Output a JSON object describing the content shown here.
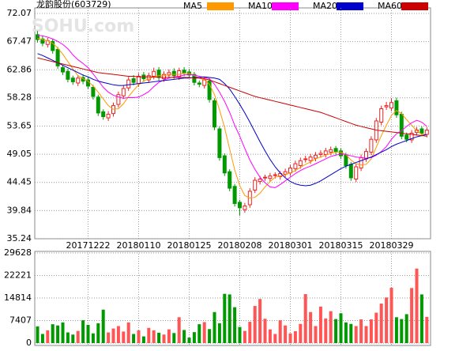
{
  "chart_data": [
    {
      "type": "candlestick",
      "title": "龙韵股份(603729)",
      "watermark": "SOHU.com",
      "categories": [
        null,
        null,
        null,
        null,
        null,
        null,
        null,
        null,
        null,
        null,
        "20171222",
        null,
        null,
        null,
        null,
        null,
        null,
        null,
        null,
        null,
        "20180110",
        null,
        null,
        null,
        null,
        null,
        null,
        null,
        null,
        null,
        "20180125",
        null,
        null,
        null,
        null,
        null,
        null,
        null,
        null,
        null,
        "20180208",
        null,
        null,
        null,
        null,
        null,
        null,
        null,
        null,
        null,
        "20180301",
        null,
        null,
        null,
        null,
        null,
        null,
        null,
        null,
        null,
        "20180315",
        null,
        null,
        null,
        null,
        null,
        null,
        null,
        null,
        null,
        "20180329",
        null,
        null,
        null,
        null,
        null,
        null,
        null
      ],
      "open": [
        68.6,
        67.9,
        67.0,
        67.5,
        66.2,
        63.2,
        62.6,
        61.5,
        60.7,
        61.6,
        61.2,
        60.0,
        58.4,
        56.0,
        55.0,
        55.7,
        57.2,
        58.6,
        59.9,
        61.4,
        60.6,
        62.0,
        61.2,
        61.8,
        62.8,
        61.4,
        62.0,
        62.6,
        61.7,
        62.8,
        62.5,
        62.1,
        60.7,
        60.3,
        61.0,
        57.8,
        53.2,
        48.8,
        46.2,
        43.8,
        41.2,
        40.0,
        40.8,
        43.2,
        44.6,
        45.2,
        45.1,
        45.6,
        45.4,
        45.8,
        46.0,
        46.7,
        47.2,
        48.2,
        48.0,
        48.4,
        49.0,
        49.0,
        49.4,
        50.0,
        49.6,
        48.9,
        47.4,
        45.0,
        46.8,
        48.3,
        49.4,
        51.4,
        54.3,
        56.8,
        56.6,
        57.8,
        55.6,
        52.2,
        51.4,
        52.6,
        53.2,
        52.3
      ],
      "high": [
        69.2,
        68.4,
        68.1,
        67.9,
        66.6,
        63.6,
        63.0,
        61.9,
        62.0,
        62.1,
        61.6,
        60.4,
        58.8,
        56.4,
        56.1,
        57.5,
        59.3,
        60.3,
        61.7,
        62.0,
        62.3,
        62.5,
        62.4,
        63.2,
        63.3,
        62.6,
        62.9,
        63.1,
        63.2,
        63.3,
        63.0,
        62.5,
        61.1,
        61.7,
        61.5,
        58.2,
        53.6,
        49.2,
        46.6,
        44.2,
        41.6,
        41.1,
        43.5,
        45.3,
        45.5,
        45.7,
        46.0,
        46.1,
        46.3,
        46.7,
        47.3,
        48.0,
        48.5,
        48.8,
        49.1,
        49.4,
        49.7,
        50.1,
        50.3,
        50.4,
        50.0,
        49.3,
        47.8,
        47.5,
        49.0,
        50.0,
        52.0,
        55.0,
        57.0,
        57.6,
        58.2,
        58.3,
        56.0,
        52.6,
        53.0,
        53.5,
        53.6,
        53.5
      ],
      "low": [
        67.3,
        66.7,
        66.5,
        65.5,
        63.0,
        62.0,
        60.8,
        60.4,
        60.2,
        60.5,
        59.7,
        58.0,
        55.3,
        54.7,
        54.5,
        55.2,
        56.7,
        58.1,
        59.4,
        60.3,
        60.1,
        60.9,
        60.7,
        61.3,
        61.1,
        60.9,
        61.5,
        61.4,
        61.2,
        61.8,
        61.5,
        60.3,
        60.0,
        59.8,
        57.5,
        53.0,
        48.0,
        45.5,
        43.0,
        40.5,
        39.0,
        39.5,
        40.3,
        42.7,
        44.1,
        44.7,
        44.6,
        45.1,
        44.9,
        45.3,
        45.5,
        46.2,
        46.7,
        47.7,
        47.5,
        47.9,
        48.5,
        48.5,
        48.9,
        49.0,
        48.3,
        46.7,
        44.7,
        44.5,
        46.3,
        47.8,
        48.9,
        50.9,
        53.8,
        56.3,
        56.1,
        55.0,
        51.5,
        51.0,
        50.9,
        52.1,
        52.0,
        51.8
      ],
      "close": [
        67.8,
        67.2,
        67.6,
        66.0,
        63.5,
        62.5,
        61.3,
        60.9,
        61.5,
        61.0,
        60.2,
        58.5,
        55.8,
        55.2,
        55.6,
        57.0,
        58.8,
        59.8,
        61.2,
        60.8,
        61.8,
        61.4,
        61.9,
        62.6,
        61.6,
        62.1,
        62.4,
        61.9,
        62.7,
        62.3,
        62.0,
        60.8,
        60.5,
        61.2,
        58.0,
        53.5,
        48.5,
        46.0,
        43.5,
        41.0,
        40.3,
        40.6,
        43.0,
        44.8,
        45.0,
        45.3,
        45.5,
        45.7,
        45.9,
        46.2,
        46.8,
        47.5,
        48.0,
        48.3,
        48.6,
        48.9,
        49.2,
        49.6,
        49.8,
        49.5,
        48.8,
        47.2,
        45.2,
        47.0,
        48.5,
        49.5,
        51.5,
        54.5,
        56.5,
        57.0,
        57.5,
        55.5,
        52.0,
        51.5,
        52.5,
        53.0,
        52.5,
        53.0
      ],
      "up_color": "#ee2222",
      "down_color": "#009900",
      "series": [
        {
          "name": "MA5",
          "color": "#ff9900",
          "values": [
            68.0,
            67.8,
            67.6,
            67.2,
            66.4,
            65.4,
            64.2,
            63.0,
            61.9,
            61.4,
            61.0,
            60.2,
            59.2,
            58.1,
            57.0,
            56.4,
            56.5,
            57.3,
            58.5,
            59.5,
            60.4,
            61.0,
            61.4,
            61.7,
            61.9,
            61.9,
            62.1,
            62.1,
            62.1,
            62.3,
            62.3,
            61.9,
            61.5,
            61.2,
            60.5,
            58.8,
            56.3,
            53.4,
            49.9,
            46.5,
            43.9,
            42.3,
            41.9,
            42.0,
            42.7,
            43.7,
            44.6,
            45.3,
            45.5,
            45.7,
            46.0,
            46.4,
            46.9,
            47.4,
            47.8,
            48.3,
            48.6,
            48.9,
            49.2,
            49.4,
            49.4,
            49.0,
            48.1,
            47.5,
            47.3,
            47.4,
            48.3,
            50.2,
            52.1,
            53.8,
            55.4,
            56.2,
            55.7,
            54.7,
            53.8,
            52.9,
            52.3,
            52.3
          ]
        },
        {
          "name": "MA10",
          "color": "#ff00ff",
          "values": [
            68.5,
            68.4,
            68.2,
            67.9,
            67.5,
            67.0,
            66.3,
            65.3,
            64.5,
            63.9,
            63.2,
            62.2,
            61.1,
            60.0,
            59.2,
            58.7,
            58.4,
            58.2,
            58.3,
            58.3,
            58.4,
            58.8,
            59.3,
            60.1,
            60.8,
            61.2,
            61.5,
            61.7,
            61.8,
            62.0,
            62.1,
            62.0,
            61.8,
            61.6,
            61.4,
            60.5,
            59.2,
            57.7,
            55.9,
            53.8,
            52.0,
            50.0,
            48.1,
            46.6,
            45.3,
            44.4,
            43.7,
            43.6,
            44.1,
            44.7,
            45.3,
            45.9,
            46.4,
            46.8,
            47.1,
            47.5,
            47.9,
            48.3,
            48.7,
            48.9,
            49.1,
            49.0,
            48.8,
            48.6,
            48.5,
            48.4,
            48.5,
            48.9,
            49.5,
            50.3,
            51.5,
            52.4,
            52.9,
            53.6,
            54.2,
            54.6,
            54.3,
            53.6
          ]
        },
        {
          "name": "MA20",
          "color": "#0000cc",
          "values": [
            65.5,
            65.2,
            64.8,
            64.4,
            64.0,
            63.6,
            63.2,
            62.8,
            62.4,
            62.0,
            61.7,
            61.3,
            61.0,
            60.8,
            60.6,
            60.4,
            60.3,
            60.3,
            60.4,
            60.5,
            60.6,
            60.7,
            60.8,
            60.9,
            61.0,
            61.1,
            61.2,
            61.3,
            61.4,
            61.5,
            61.5,
            61.6,
            61.6,
            61.7,
            61.6,
            61.5,
            61.3,
            60.6,
            59.7,
            58.5,
            57.2,
            55.8,
            54.3,
            52.7,
            51.1,
            49.6,
            48.2,
            47.0,
            46.0,
            45.2,
            44.6,
            44.2,
            44.0,
            43.9,
            44.0,
            44.3,
            44.7,
            45.2,
            45.7,
            46.2,
            46.7,
            47.1,
            47.4,
            47.7,
            48.0,
            48.3,
            48.6,
            49.0,
            49.4,
            49.8,
            50.3,
            50.7,
            51.0,
            51.3,
            51.6,
            51.9,
            52.1,
            52.3
          ]
        },
        {
          "name": "MA60",
          "color": "#cc0000",
          "values": [
            64.8,
            64.6,
            64.4,
            64.2,
            64.0,
            63.8,
            63.6,
            63.4,
            63.2,
            63.0,
            62.8,
            62.6,
            62.4,
            62.3,
            62.2,
            62.1,
            62.0,
            61.9,
            61.8,
            61.8,
            61.7,
            61.7,
            61.7,
            61.7,
            61.6,
            61.6,
            61.6,
            61.6,
            61.6,
            61.6,
            61.6,
            61.5,
            61.5,
            61.4,
            61.2,
            60.9,
            60.6,
            60.3,
            60.0,
            59.7,
            59.4,
            59.1,
            58.8,
            58.5,
            58.3,
            58.1,
            57.9,
            57.7,
            57.5,
            57.3,
            57.1,
            56.9,
            56.7,
            56.5,
            56.3,
            56.1,
            55.9,
            55.6,
            55.3,
            55.0,
            54.7,
            54.4,
            54.1,
            53.8,
            53.6,
            53.4,
            53.2,
            53.0,
            52.9,
            52.8,
            52.7,
            52.6,
            52.5,
            52.4,
            52.3,
            52.2,
            52.1,
            52.0
          ]
        }
      ],
      "ylim": [
        35.24,
        72.07
      ],
      "yticks": [
        35.24,
        39.84,
        44.45,
        49.05,
        53.65,
        58.28,
        62.86,
        67.47,
        72.07
      ],
      "grid": true
    },
    {
      "type": "bar",
      "values": [
        5500,
        3000,
        4200,
        6200,
        5800,
        6800,
        3500,
        2800,
        4000,
        7500,
        6000,
        3200,
        6500,
        11000,
        3500,
        4800,
        5600,
        3800,
        6800,
        3000,
        4200,
        2200,
        5000,
        4200,
        3400,
        2800,
        4500,
        3300,
        8500,
        4300,
        1800,
        3600,
        6200,
        6900,
        4600,
        10200,
        6500,
        16200,
        16000,
        11800,
        5300,
        4000,
        7000,
        12200,
        14500,
        8000,
        4500,
        3000,
        7500,
        5800,
        3200,
        3900,
        6300,
        16100,
        10200,
        5600,
        12000,
        8100,
        10500,
        7900,
        9800,
        6800,
        6300,
        5600,
        7800,
        5600,
        7800,
        10000,
        13000,
        15000,
        18200,
        8500,
        7900,
        9500,
        18100,
        24500,
        16000,
        8600
      ],
      "up_color": "#ff5555",
      "down_color": "#009900",
      "ylim": [
        0,
        29628
      ],
      "yticks": [
        0,
        7407,
        14814,
        22221,
        29628
      ],
      "grid": true
    }
  ]
}
